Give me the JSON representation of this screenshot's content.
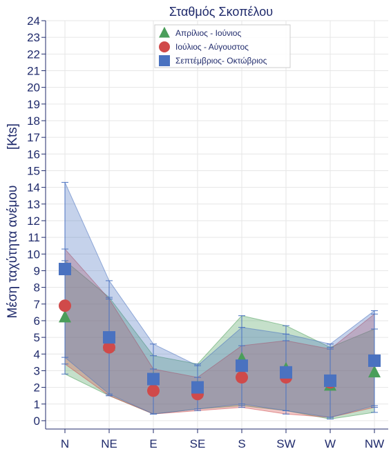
{
  "chart_data": {
    "type": "line",
    "title": "Σταθμός Σκοπέλου",
    "ylabel": "Μέση ταχύτητα ανέμου",
    "yunit": "[Kts]",
    "xlabel": "",
    "categories": [
      "N",
      "NE",
      "E",
      "SE",
      "S",
      "SW",
      "W",
      "NW"
    ],
    "ylim": [
      -0.5,
      24
    ],
    "yticks": [
      0,
      1,
      2,
      3,
      4,
      5,
      6,
      7,
      8,
      9,
      10,
      11,
      12,
      13,
      14,
      15,
      16,
      17,
      18,
      19,
      20,
      21,
      22,
      23,
      24
    ],
    "grid": true,
    "legend_position": "top-center",
    "series": [
      {
        "name": "Απρίλιος - Ιούνιος",
        "marker": "triangle",
        "color": "#4a9e5a",
        "values": [
          6.2,
          4.5,
          2.5,
          2.0,
          3.7,
          3.1,
          2.1,
          2.9
        ],
        "upper": [
          9.6,
          7.4,
          3.9,
          3.4,
          6.3,
          5.7,
          4.4,
          5.5
        ],
        "lower": [
          2.8,
          1.5,
          0.4,
          0.7,
          0.9,
          0.6,
          0.1,
          0.5
        ]
      },
      {
        "name": "Ιούλιος - Αύγουστος",
        "marker": "circle",
        "color": "#d04a4a",
        "values": [
          6.9,
          4.4,
          1.8,
          1.6,
          2.6,
          2.6,
          2.3,
          3.6
        ],
        "upper": [
          10.3,
          7.3,
          3.1,
          2.6,
          4.5,
          4.8,
          4.3,
          6.4
        ],
        "lower": [
          3.4,
          1.5,
          0.4,
          0.6,
          0.8,
          0.4,
          0.2,
          0.8
        ]
      },
      {
        "name": "Σεπτέμβριος- Οκτώβριος",
        "marker": "square",
        "color": "#4a72c0",
        "values": [
          9.1,
          5.0,
          2.5,
          2.0,
          3.3,
          2.9,
          2.4,
          3.6
        ],
        "upper": [
          14.3,
          8.4,
          4.6,
          3.3,
          5.6,
          5.2,
          4.6,
          6.6
        ],
        "lower": [
          3.8,
          1.6,
          0.4,
          0.7,
          1.0,
          0.6,
          0.2,
          0.9
        ]
      }
    ],
    "colors": {
      "axis": "#1f2a6b",
      "grid": "#e6e6e6",
      "errorbar": "#4a72c0"
    }
  }
}
